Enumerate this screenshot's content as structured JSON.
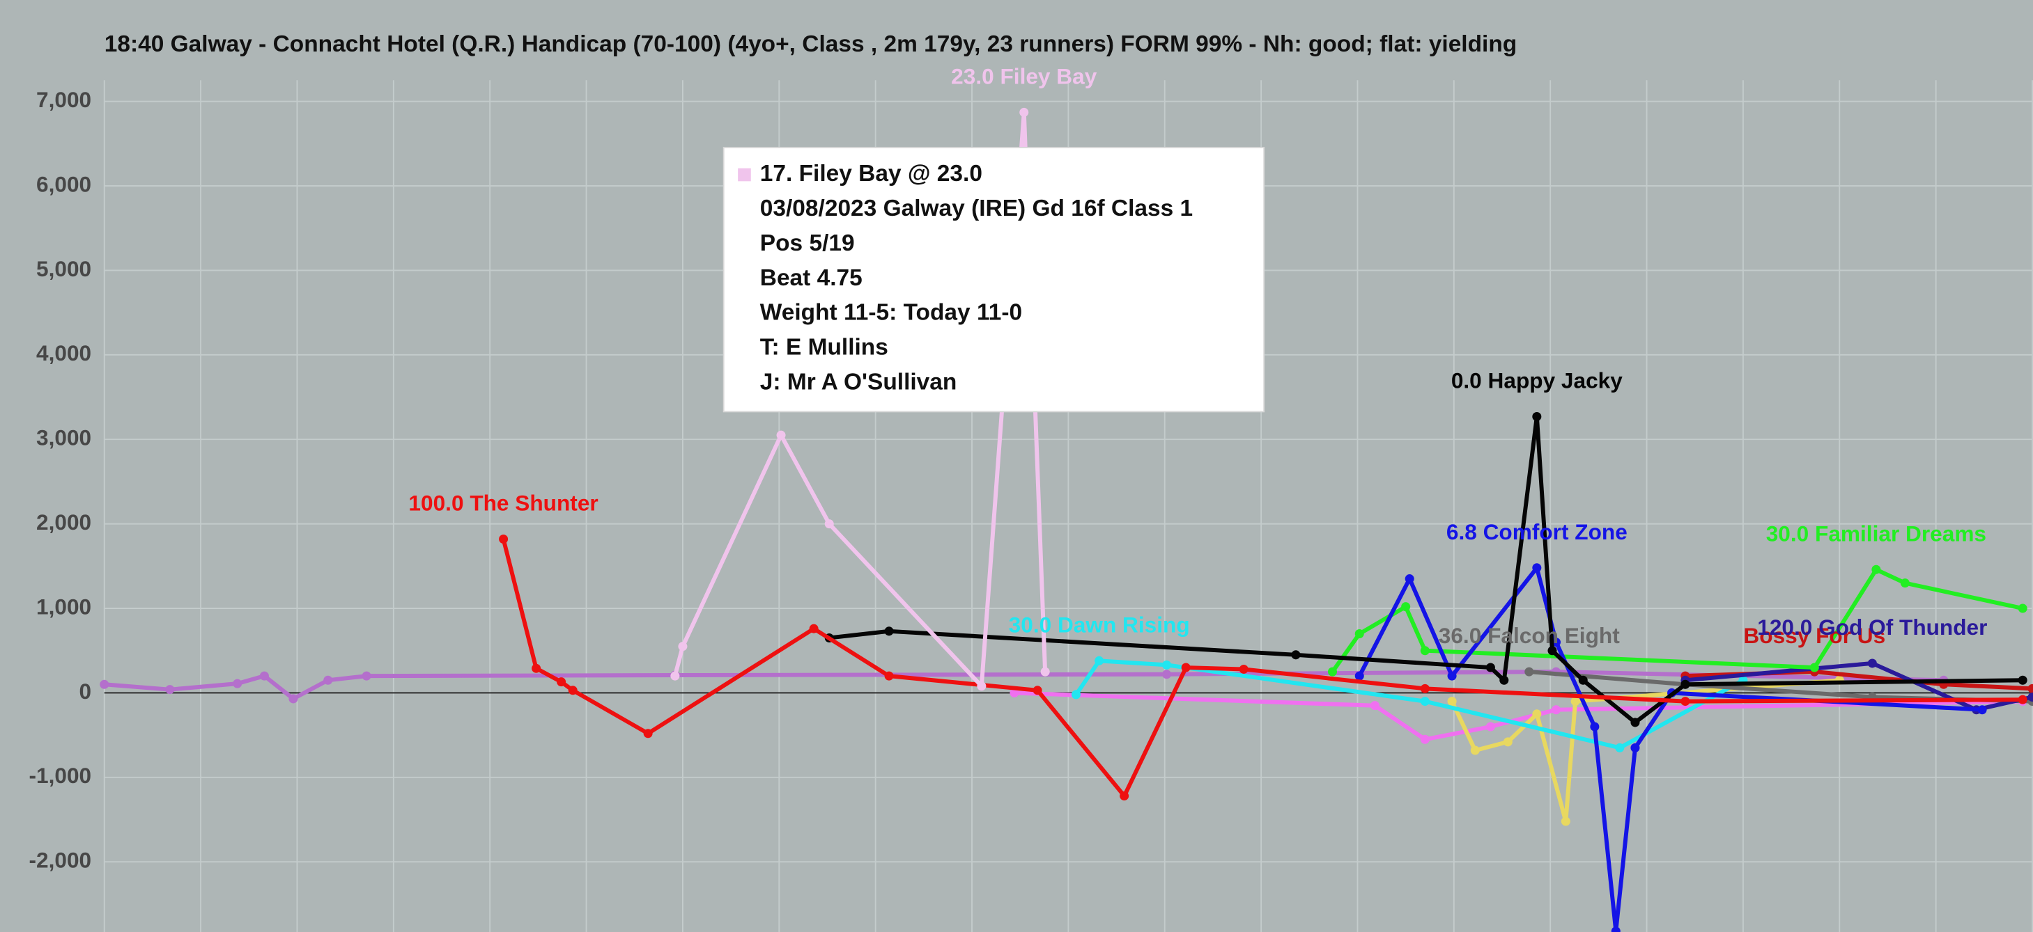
{
  "chart_data": {
    "type": "line",
    "title": "18:40 Galway - Connacht Hotel (Q.R.) Handicap (70-100) (4yo+, Class , 2m 179y, 23 runners) FORM 99% - Nh: good; flat: yielding",
    "xlim": [
      0,
      100
    ],
    "xticks": [
      0,
      5,
      10,
      15,
      20,
      25,
      30,
      35,
      40,
      45,
      50,
      55,
      60,
      65,
      70,
      75,
      80,
      85,
      90,
      95,
      100
    ],
    "ylim": [
      -2830,
      7250
    ],
    "yticks": [
      {
        "value": -2000,
        "label": "-2,000"
      },
      {
        "value": -1000,
        "label": "-1,000"
      },
      0,
      {
        "value": 1000,
        "label": "1,000"
      },
      {
        "value": 2000,
        "label": "2,000"
      },
      {
        "value": 3000,
        "label": "3,000"
      },
      {
        "value": 4000,
        "label": "4,000"
      },
      {
        "value": 5000,
        "label": "5,000"
      },
      {
        "value": 6000,
        "label": "6,000"
      },
      {
        "value": 7000,
        "label": "7,000"
      }
    ],
    "grid": true,
    "series": [
      {
        "color": "#b46fcc",
        "x": [
          0,
          3.4,
          6.9,
          8.3,
          9.8,
          11.6,
          13.6,
          29.6,
          55.1,
          75.3,
          95.4
        ],
        "values": [
          100,
          40,
          110,
          200,
          -70,
          150,
          200,
          210,
          220,
          250,
          150
        ]
      },
      {
        "color": "#f070f0",
        "x": [
          47.2,
          65.9,
          68.5,
          71.9,
          75.3,
          99.5
        ],
        "values": [
          0,
          -150,
          -550,
          -400,
          -200,
          -100
        ]
      },
      {
        "color": "#e8d860",
        "x": [
          69.9,
          71.1,
          72.8,
          74.3,
          75.8,
          76.3,
          90
        ],
        "values": [
          -100,
          -680,
          -580,
          -250,
          -1520,
          -100,
          150
        ]
      },
      {
        "name": "30.0 Dawn Rising",
        "color": "#22e6f0",
        "x": [
          50.4,
          51.6,
          55.1,
          68.5,
          78.6,
          85
        ],
        "values": [
          -20,
          380,
          330,
          -100,
          -650,
          150
        ]
      },
      {
        "name": "36.0 Falcon Eight",
        "color": "#6a6a6a",
        "x": [
          73.9,
          82.0,
          91.7,
          100
        ],
        "values": [
          250,
          100,
          -50,
          -100
        ]
      },
      {
        "name": "Bossy For Us",
        "color": "#c81414",
        "x": [
          82.0,
          88.7,
          95.4,
          100
        ],
        "values": [
          200,
          250,
          100,
          50
        ]
      },
      {
        "name": "120.0 God Of Thunder",
        "color": "#2a1a9a",
        "x": [
          82.0,
          91.7,
          97.1,
          100
        ],
        "values": [
          150,
          350,
          -200,
          -50
        ]
      },
      {
        "name": "30.0 Familiar Dreams",
        "color": "#22ee22",
        "x": [
          63.7,
          65.1,
          67.5,
          68.5,
          88.7,
          91.9,
          93.4,
          99.5
        ],
        "values": [
          250,
          700,
          1020,
          500,
          300,
          1460,
          1300,
          1000
        ]
      },
      {
        "name": "6.8 Comfort Zone",
        "color": "#1414e6",
        "x": [
          65.1,
          67.7,
          69.9,
          74.3,
          75.3,
          77.3,
          78.4,
          79.4,
          81.3,
          97.4
        ],
        "values": [
          200,
          1350,
          200,
          1480,
          600,
          -400,
          -2820,
          -650,
          0,
          -200
        ]
      },
      {
        "name": "0.0 Happy Jacky",
        "color": "#050505",
        "x": [
          37.6,
          40.7,
          61.8,
          71.9,
          72.6,
          74.3,
          75.1,
          76.7,
          79.4,
          82.0,
          99.5
        ],
        "values": [
          650,
          730,
          450,
          300,
          150,
          3270,
          500,
          150,
          -350,
          100,
          150
        ]
      },
      {
        "name": "100.0 The Shunter",
        "color": "#ee1010",
        "x": [
          20.7,
          22.4,
          23.7,
          24.3,
          28.2,
          36.8,
          40.7,
          48.4,
          52.9,
          56.1,
          59.1,
          68.5,
          82.0,
          99.5
        ],
        "values": [
          1820,
          290,
          130,
          30,
          -480,
          760,
          200,
          30,
          -1220,
          300,
          280,
          50,
          -100,
          -80
        ]
      },
      {
        "name": "23.0 Filey Bay",
        "color": "#f0c4ec",
        "x": [
          29.6,
          30.0,
          35.1,
          37.6,
          45.5,
          47.7,
          48.8
        ],
        "values": [
          200,
          550,
          3050,
          2000,
          80,
          6870,
          250
        ]
      }
    ],
    "tooltip": {
      "title": "17. Filey Bay @ 23.0",
      "lines": [
        "03/08/2023 Galway (IRE) Gd 16f Class 1",
        "Pos 5/19",
        "Beat 4.75",
        "Weight 11-5: Today 11-0",
        "T: E Mullins",
        "J: Mr A O'Sullivan"
      ]
    }
  }
}
